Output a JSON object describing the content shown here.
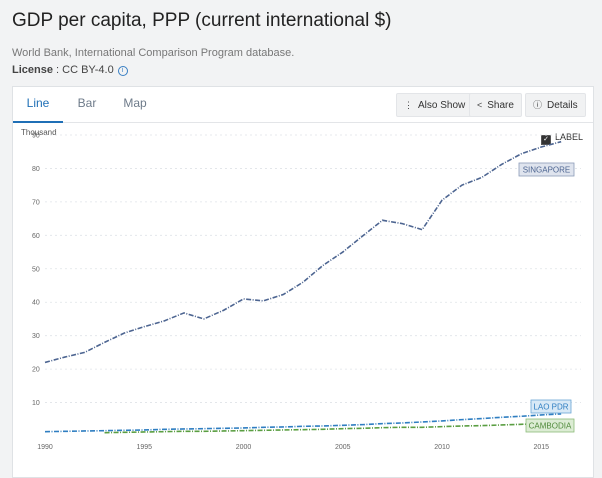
{
  "header": {
    "title": "GDP per capita, PPP (current international $)",
    "source": "World Bank, International Comparison Program database.",
    "license_label": "License",
    "license_value": " : CC BY-4.0",
    "info_icon": "info-icon"
  },
  "tabs": [
    {
      "label": "Line",
      "active": true
    },
    {
      "label": "Bar",
      "active": false
    },
    {
      "label": "Map",
      "active": false
    }
  ],
  "toolbar": {
    "also_show": "Also Show",
    "share": "Share",
    "details": "Details",
    "icons": {
      "also_show": "kebab-icon",
      "share": "share-icon",
      "details": "info-icon"
    }
  },
  "label_toggle": {
    "text": "LABEL",
    "checked": true
  },
  "colors": {
    "accent": "#1f6fb6",
    "singapore": "#4d6591",
    "lao": "#2f7ec1",
    "cambodia": "#5a9e42"
  },
  "chart_data": {
    "type": "line",
    "unit_label": "Thousand",
    "ylim": [
      0,
      90
    ],
    "xlim": [
      1990,
      2017
    ],
    "yticks": [
      10,
      20,
      30,
      40,
      50,
      60,
      70,
      80,
      90
    ],
    "xticks": [
      1990,
      1995,
      2000,
      2005,
      2010,
      2015
    ],
    "grid": true,
    "series": [
      {
        "name": "SINGAPORE",
        "color": "#4d6591",
        "x": [
          1990,
          1991,
          1992,
          1993,
          1994,
          1995,
          1996,
          1997,
          1998,
          1999,
          2000,
          2001,
          2002,
          2003,
          2004,
          2005,
          2006,
          2007,
          2008,
          2009,
          2010,
          2011,
          2012,
          2013,
          2014,
          2015,
          2016
        ],
        "values": [
          22,
          23.6,
          25,
          28,
          30.8,
          32.7,
          34.4,
          36.8,
          35,
          37.6,
          41,
          40.4,
          42.3,
          46,
          51,
          55,
          59.8,
          64.5,
          63.5,
          61.7,
          70.5,
          75,
          77.3,
          81.2,
          84.4,
          86.4,
          88
        ]
      },
      {
        "name": "LAO PDR",
        "color": "#2f7ec1",
        "x": [
          1990,
          1991,
          1992,
          1993,
          1994,
          1995,
          1996,
          1997,
          1998,
          1999,
          2000,
          2001,
          2002,
          2003,
          2004,
          2005,
          2006,
          2007,
          2008,
          2009,
          2010,
          2011,
          2012,
          2013,
          2014,
          2015,
          2016
        ],
        "values": [
          1.3,
          1.4,
          1.5,
          1.6,
          1.7,
          1.8,
          2.0,
          2.1,
          2.2,
          2.3,
          2.4,
          2.6,
          2.7,
          2.9,
          3.0,
          3.2,
          3.4,
          3.7,
          3.9,
          4.2,
          4.5,
          4.9,
          5.2,
          5.6,
          5.9,
          6.3,
          6.6
        ]
      },
      {
        "name": "CAMBODIA",
        "color": "#5a9e42",
        "x": [
          1993,
          1994,
          1995,
          1996,
          1997,
          1998,
          1999,
          2000,
          2001,
          2002,
          2003,
          2004,
          2005,
          2006,
          2007,
          2008,
          2009,
          2010,
          2011,
          2012,
          2013,
          2014,
          2015,
          2016
        ],
        "values": [
          1.0,
          1.1,
          1.2,
          1.3,
          1.4,
          1.4,
          1.5,
          1.6,
          1.7,
          1.8,
          1.9,
          2.0,
          2.2,
          2.3,
          2.5,
          2.6,
          2.6,
          2.8,
          3.0,
          3.1,
          3.3,
          3.5,
          3.7,
          3.9
        ]
      }
    ]
  }
}
